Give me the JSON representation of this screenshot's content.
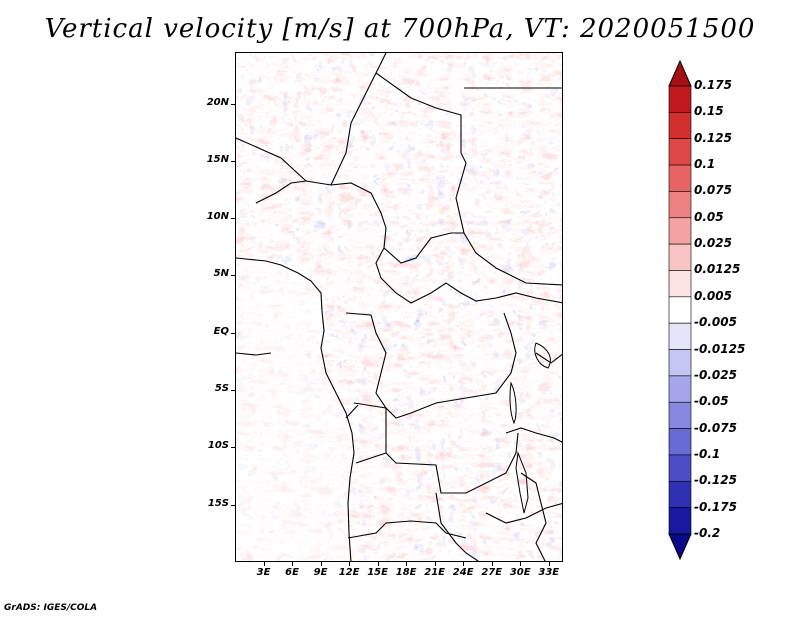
{
  "title": "Vertical velocity [m/s] at 700hPa, VT: 2020051500",
  "credit": "GrADS: IGES/COLA",
  "map": {
    "lat_labels": [
      "20N",
      "15N",
      "10N",
      "5N",
      "EQ",
      "5S",
      "10S",
      "15S"
    ],
    "lat_values": [
      20,
      15,
      10,
      5,
      0,
      -5,
      -10,
      -15
    ],
    "lon_labels": [
      "3E",
      "6E",
      "9E",
      "12E",
      "15E",
      "18E",
      "21E",
      "24E",
      "27E",
      "30E",
      "33E"
    ],
    "lon_values": [
      3,
      6,
      9,
      12,
      15,
      18,
      21,
      24,
      27,
      30,
      33
    ],
    "lat_range": [
      -20,
      24.5
    ],
    "lon_range": [
      0,
      34.5
    ]
  },
  "colorbar": {
    "labels": [
      "0.175",
      "0.15",
      "0.125",
      "0.1",
      "0.075",
      "0.05",
      "0.025",
      "0.0125",
      "0.005",
      "-0.005",
      "-0.0125",
      "-0.025",
      "-0.05",
      "-0.075",
      "-0.1",
      "-0.125",
      "-0.175",
      "-0.2"
    ],
    "colors": [
      "#a50f15",
      "#c0181c",
      "#d32f2f",
      "#e04848",
      "#e86464",
      "#ee8282",
      "#f4a2a2",
      "#f9c4c4",
      "#fde3e3",
      "#ffffff",
      "#e4e4fb",
      "#c6c6f4",
      "#a6a6ec",
      "#8888e2",
      "#6a6ad6",
      "#4c4cc6",
      "#3030b4",
      "#1818a0",
      "#0a0a8a"
    ]
  }
}
